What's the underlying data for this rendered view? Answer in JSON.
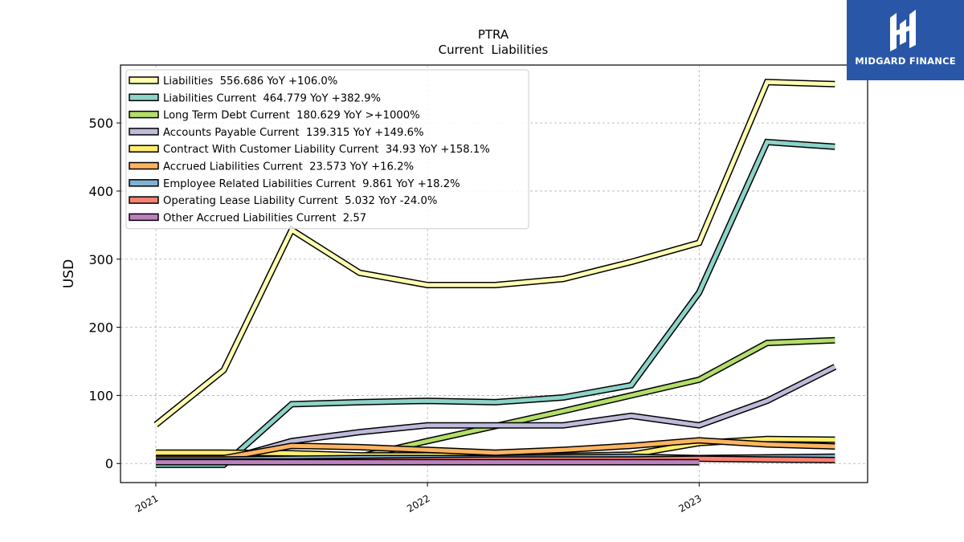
{
  "brand": {
    "name": "MIDGARD FINANCE",
    "bg_color": "#2a56a8"
  },
  "chart_data": {
    "type": "line",
    "title": "PTRA",
    "subtitle": "Current  Liabilities",
    "ylabel": "USD",
    "xlabel": "",
    "ylim": [
      -28,
      585
    ],
    "xlim": [
      2020.87,
      2021.0,
      2022.0,
      2023.0,
      2023.62
    ],
    "yticks": [
      0,
      100,
      200,
      300,
      400,
      500
    ],
    "xticks": [
      {
        "value": 2021.0,
        "label": "2021"
      },
      {
        "value": 2022.0,
        "label": "2022"
      },
      {
        "value": 2023.0,
        "label": "2023"
      }
    ],
    "grid": true,
    "legend_position": "top-left",
    "series": [
      {
        "name": "Liabilities  556.686 YoY +106.0%",
        "color": "#ffffb3",
        "x": [
          2021.0,
          2021.25,
          2021.5,
          2021.75,
          2022.0,
          2022.25,
          2022.5,
          2022.75,
          2023.0,
          2023.25,
          2023.5
        ],
        "y": [
          57,
          137,
          343,
          280,
          262,
          262,
          271,
          296,
          324,
          560,
          557
        ]
      },
      {
        "name": "Liabilities Current  464.779 YoY +382.9%",
        "color": "#8dd3c7",
        "x": [
          2021.0,
          2021.25,
          2021.5,
          2021.75,
          2022.0,
          2022.25,
          2022.5,
          2022.75,
          2023.0,
          2023.25,
          2023.5
        ],
        "y": [
          -2,
          -2,
          87,
          90,
          92,
          90,
          97,
          115,
          251,
          472,
          465
        ]
      },
      {
        "name": "Long Term Debt Current  180.629 YoY >+1000%",
        "color": "#b3de69",
        "x": [
          2021.75,
          2022.0,
          2022.25,
          2022.5,
          2022.75,
          2023.0,
          2023.25,
          2023.5
        ],
        "y": [
          10,
          33,
          55,
          77,
          100,
          123,
          177,
          181
        ]
      },
      {
        "name": "Accounts Payable Current  139.315 YoY +149.6%",
        "color": "#bebada",
        "x": [
          2021.0,
          2021.25,
          2021.5,
          2021.75,
          2022.0,
          2022.25,
          2022.5,
          2022.75,
          2023.0,
          2023.25,
          2023.5
        ],
        "y": [
          5,
          5,
          33,
          46,
          56,
          56,
          56,
          70,
          56,
          92,
          142
        ]
      },
      {
        "name": "Contract With Customer Liability Current  34.93 YoY +158.1%",
        "color": "#ffed6f",
        "x": [
          2021.0,
          2021.25,
          2021.5,
          2021.75,
          2022.0,
          2022.25,
          2022.5,
          2022.75,
          2023.0,
          2023.25,
          2023.5
        ],
        "y": [
          16,
          16,
          15,
          12,
          12,
          10,
          11,
          13,
          30,
          36,
          35
        ]
      },
      {
        "name": "Accrued Liabilities Current  23.573 YoY +16.2%",
        "color": "#fdb462",
        "x": [
          2021.0,
          2021.25,
          2021.5,
          2021.75,
          2022.0,
          2022.25,
          2022.5,
          2022.75,
          2023.0,
          2023.25,
          2023.5
        ],
        "y": [
          8,
          8,
          26,
          24,
          20,
          16,
          20,
          26,
          34,
          28,
          25
        ]
      },
      {
        "name": "Employee Related Liabilities Current  9.861 YoY +18.2%",
        "color": "#80b1d3",
        "x": [
          2021.0,
          2021.25,
          2021.5,
          2021.75,
          2022.0,
          2022.25,
          2022.5,
          2022.75,
          2023.0,
          2023.25,
          2023.5
        ],
        "y": [
          6,
          6,
          7,
          8,
          8,
          8,
          9,
          10,
          8,
          9,
          10
        ]
      },
      {
        "name": "Operating Lease Liability Current  5.032 YoY -24.0%",
        "color": "#fb8072",
        "x": [
          2021.0,
          2021.25,
          2021.5,
          2021.75,
          2022.0,
          2022.25,
          2022.5,
          2022.75,
          2023.0,
          2023.25,
          2023.5
        ],
        "y": [
          3,
          3,
          3,
          4,
          5,
          6,
          6,
          6,
          7,
          6,
          5
        ]
      },
      {
        "name": "Other Accrued Liabilities Current  2.57",
        "color": "#bc80bd",
        "x": [
          2021.0,
          2021.25,
          2021.5,
          2021.75,
          2022.0,
          2022.25,
          2022.5,
          2022.75,
          2023.0
        ],
        "y": [
          2,
          2,
          2,
          2,
          2,
          2,
          2,
          2,
          2
        ]
      }
    ]
  }
}
